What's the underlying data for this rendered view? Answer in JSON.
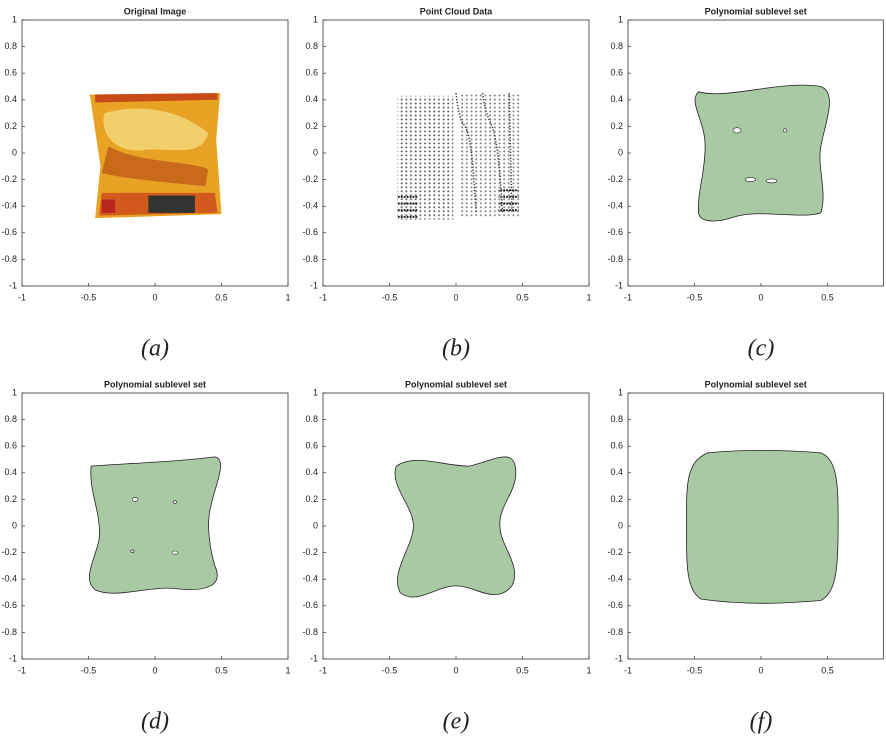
{
  "chart_data": [
    {
      "type": "image",
      "title": "Original Image",
      "caption": "(a)",
      "xlim": [
        -1,
        1
      ],
      "ylim": [
        -1,
        1
      ],
      "xticks": [
        -1,
        -0.5,
        0,
        0.5,
        1
      ],
      "yticks": [
        -1,
        -0.8,
        -0.6,
        -0.4,
        -0.2,
        0,
        0.2,
        0.4,
        0.6,
        0.8,
        1
      ]
    },
    {
      "type": "point-cloud",
      "title": "Point Cloud Data",
      "caption": "(b)",
      "xlim": [
        -1,
        1
      ],
      "ylim": [
        -1,
        1
      ],
      "xticks": [
        -1,
        -0.5,
        0,
        0.5,
        1
      ],
      "yticks": [
        -1,
        -0.8,
        -0.6,
        -0.4,
        -0.2,
        0,
        0.2,
        0.4,
        0.6,
        0.8,
        1
      ]
    },
    {
      "type": "region",
      "title": "Polynomial sublevel set",
      "caption": "(c)",
      "xlim": [
        -1,
        0.92
      ],
      "ylim": [
        -1,
        1
      ],
      "xticks": [
        -1,
        -0.5,
        0,
        0.5
      ],
      "yticks": [
        -1,
        -0.8,
        -0.6,
        -0.4,
        -0.2,
        0,
        0.2,
        0.4,
        0.6,
        0.8,
        1
      ]
    },
    {
      "type": "region",
      "title": "Polynomial sublevel set",
      "caption": "(d)",
      "xlim": [
        -1,
        1
      ],
      "ylim": [
        -1,
        1
      ],
      "xticks": [
        -1,
        -0.5,
        0,
        0.5,
        1
      ],
      "yticks": [
        -1,
        -0.8,
        -0.6,
        -0.4,
        -0.2,
        0,
        0.2,
        0.4,
        0.6,
        0.8,
        1
      ]
    },
    {
      "type": "region",
      "title": "Polynomial sublevel set",
      "caption": "(e)",
      "xlim": [
        -1,
        1
      ],
      "ylim": [
        -1,
        1
      ],
      "xticks": [
        -1,
        -0.5,
        0,
        0.5,
        1
      ],
      "yticks": [
        -1,
        -0.8,
        -0.6,
        -0.4,
        -0.2,
        0,
        0.2,
        0.4,
        0.6,
        0.8,
        1
      ]
    },
    {
      "type": "region",
      "title": "Polynomial sublevel set",
      "caption": "(f)",
      "xlim": [
        -1,
        0.92
      ],
      "ylim": [
        -1,
        1
      ],
      "xticks": [
        -1,
        -0.5,
        0,
        0.5
      ],
      "yticks": [
        -1,
        -0.8,
        -0.6,
        -0.4,
        -0.2,
        0,
        0.2,
        0.4,
        0.6,
        0.8,
        1
      ]
    }
  ]
}
